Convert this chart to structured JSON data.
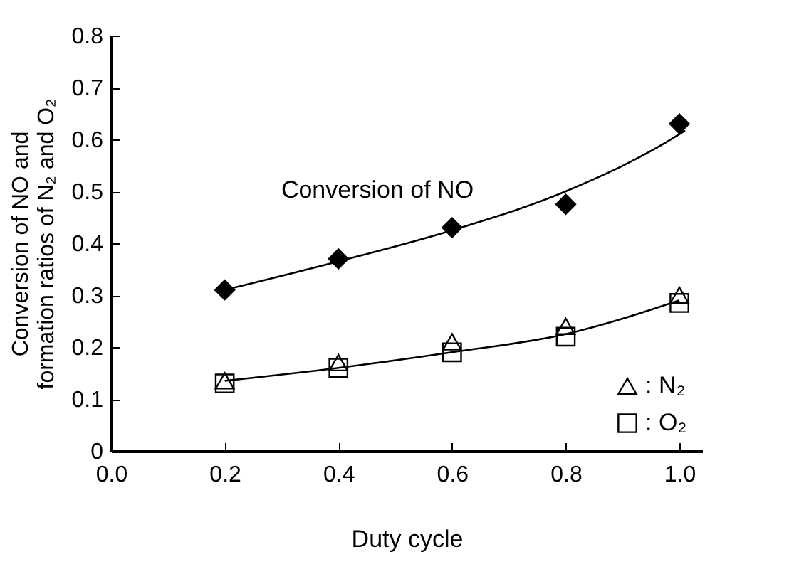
{
  "chart_data": {
    "type": "scatter",
    "xlabel": "Duty cycle",
    "ylabel": "Conversion of  NO and\nformation ratios of N₂ and O₂",
    "xlim": [
      0,
      1.04
    ],
    "ylim": [
      0,
      0.8
    ],
    "xticks": [
      {
        "value": 0,
        "label": "0.0"
      },
      0.2,
      0.4,
      0.6,
      0.8,
      {
        "value": 1,
        "label": "1.0"
      }
    ],
    "yticks": [
      0,
      0.1,
      0.2,
      0.3,
      0.4,
      0.5,
      0.6,
      0.7,
      0.8
    ],
    "grid": false,
    "legend": "bottom right",
    "annotations": [
      "Conversion of NO"
    ],
    "series": [
      {
        "marker": "diamond",
        "color": "#000000",
        "x": [
          0.2,
          0.4,
          0.6,
          0.8,
          1.0
        ],
        "values": [
          0.31,
          0.37,
          0.43,
          0.475,
          0.63
        ]
      },
      {
        "name": ": N₂",
        "marker": "triangle",
        "color": "#000000",
        "x": [
          0.2,
          0.4,
          0.6,
          0.8,
          1.0
        ],
        "values": [
          0.135,
          0.17,
          0.21,
          0.24,
          0.3
        ]
      },
      {
        "name": ": O₂",
        "marker": "square",
        "color": "#000000",
        "x": [
          0.2,
          0.4,
          0.6,
          0.8,
          1.0
        ],
        "values": [
          0.13,
          0.16,
          0.19,
          0.22,
          0.285
        ]
      },
      {
        "type": "line",
        "marker": "none",
        "color": "#000000",
        "x": [
          0.2,
          0.4,
          0.6,
          0.8,
          1.0,
          1.01
        ],
        "values": [
          0.31,
          0.365,
          0.425,
          0.5,
          0.61,
          0.617
        ]
      },
      {
        "type": "line",
        "marker": "none",
        "color": "#000000",
        "x": [
          0.2,
          0.4,
          0.6,
          0.8,
          1.0
        ],
        "values": [
          0.135,
          0.16,
          0.19,
          0.225,
          0.29
        ]
      }
    ]
  }
}
